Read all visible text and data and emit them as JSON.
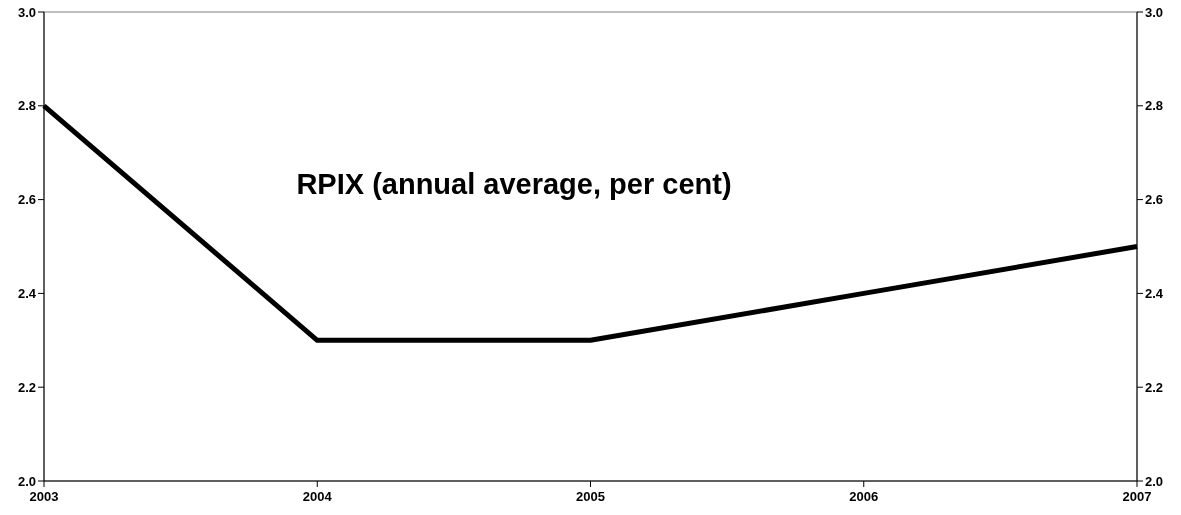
{
  "chart_data": {
    "type": "line",
    "title": "RPIX (annual average, per cent)",
    "x": [
      2003,
      2004,
      2005,
      2006,
      2007
    ],
    "series": [
      {
        "color": "#000000",
        "values": [
          2.8,
          2.3,
          2.3,
          2.4,
          2.5
        ]
      }
    ],
    "xlim": [
      2003,
      2007
    ],
    "xticks": [
      2003,
      2004,
      2005,
      2006,
      2007
    ],
    "ylim": [
      2.0,
      3.0
    ],
    "yticks": [
      {
        "value": 2.0,
        "label": "2.0"
      },
      {
        "value": 2.2,
        "label": "2.2"
      },
      {
        "value": 2.4,
        "label": "2.4"
      },
      {
        "value": 2.6,
        "label": "2.6"
      },
      {
        "value": 2.8,
        "label": "2.8"
      },
      {
        "value": 3.0,
        "label": "3.0"
      }
    ],
    "y2lim": [
      2.0,
      3.0
    ],
    "y2ticks": [
      {
        "value": 2.0,
        "label": "2.0"
      },
      {
        "value": 2.2,
        "label": "2.2"
      },
      {
        "value": 2.4,
        "label": "2.4"
      },
      {
        "value": 2.6,
        "label": "2.6"
      },
      {
        "value": 2.8,
        "label": "2.8"
      },
      {
        "value": 3.0,
        "label": "3.0"
      }
    ],
    "grid": false,
    "marker": "none",
    "line_style": "solid"
  }
}
